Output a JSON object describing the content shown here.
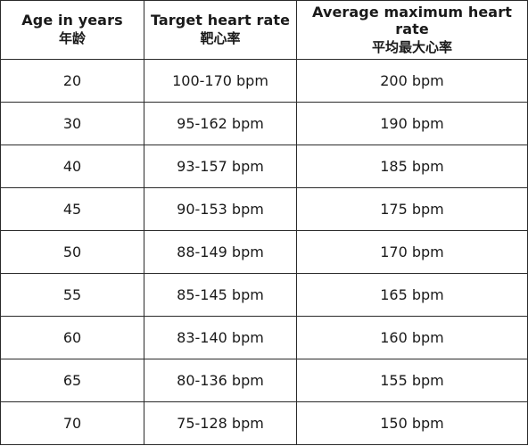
{
  "table": {
    "headers": [
      {
        "en": "Age in years",
        "zh": "年龄"
      },
      {
        "en": "Target heart rate",
        "zh": "靶心率"
      },
      {
        "en": "Average maximum heart rate",
        "zh": "平均最大心率"
      }
    ],
    "rows": [
      {
        "age": "20",
        "target": "100-170 bpm",
        "max": "200 bpm"
      },
      {
        "age": "30",
        "target": "95-162 bpm",
        "max": "190 bpm"
      },
      {
        "age": "40",
        "target": "93-157 bpm",
        "max": "185 bpm"
      },
      {
        "age": "45",
        "target": "90-153 bpm",
        "max": "175 bpm"
      },
      {
        "age": "50",
        "target": "88-149 bpm",
        "max": "170 bpm"
      },
      {
        "age": "55",
        "target": "85-145 bpm",
        "max": "165 bpm"
      },
      {
        "age": "60",
        "target": "83-140 bpm",
        "max": "160 bpm"
      },
      {
        "age": "65",
        "target": "80-136 bpm",
        "max": "155 bpm"
      },
      {
        "age": "70",
        "target": "75-128 bpm",
        "max": "150 bpm"
      }
    ]
  }
}
